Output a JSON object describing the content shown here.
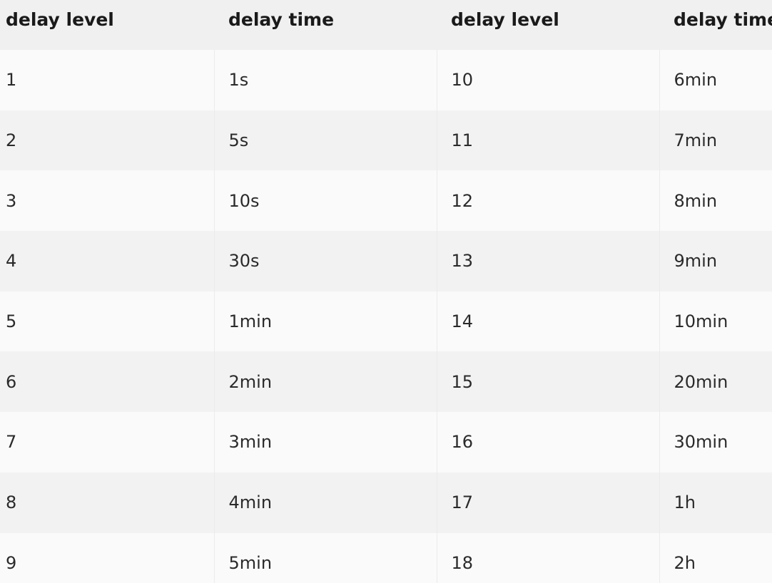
{
  "table": {
    "headers": [
      "delay level",
      "delay time",
      "delay level",
      "delay time"
    ],
    "rows": [
      [
        "1",
        "1s",
        "10",
        "6min"
      ],
      [
        "2",
        "5s",
        "11",
        "7min"
      ],
      [
        "3",
        "10s",
        "12",
        "8min"
      ],
      [
        "4",
        "30s",
        "13",
        "9min"
      ],
      [
        "5",
        "1min",
        "14",
        "10min"
      ],
      [
        "6",
        "2min",
        "15",
        "20min"
      ],
      [
        "7",
        "3min",
        "16",
        "30min"
      ],
      [
        "8",
        "4min",
        "17",
        "1h"
      ],
      [
        "9",
        "5min",
        "18",
        "2h"
      ]
    ]
  }
}
